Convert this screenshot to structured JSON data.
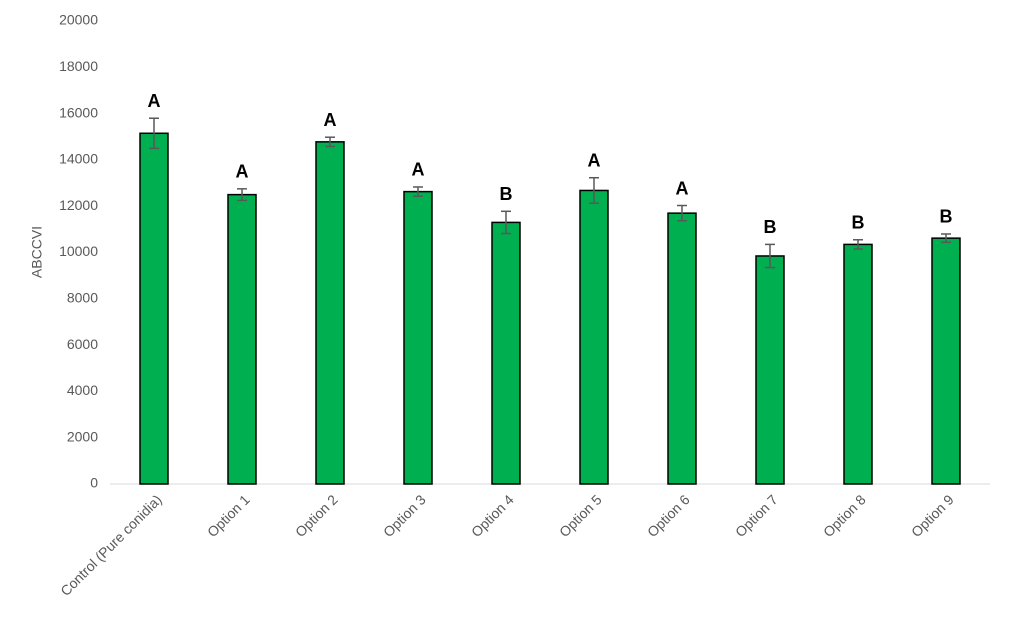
{
  "chart_data": {
    "type": "bar",
    "y_label": "ABCCVI",
    "categories": [
      "Control (Pure conidia)",
      "Option 1",
      "Option 2",
      "Option 3",
      "Option 4",
      "Option 5",
      "Option 6",
      "Option 7",
      "Option 8",
      "Option 9"
    ],
    "values": [
      15150,
      12500,
      14780,
      12630,
      11300,
      12680,
      11700,
      9850,
      10350,
      10620
    ],
    "errors": [
      650,
      250,
      200,
      200,
      480,
      550,
      330,
      500,
      200,
      180
    ],
    "annotations": [
      "A",
      "A",
      "A",
      "A",
      "B",
      "A",
      "A",
      "B",
      "B",
      "B"
    ],
    "color": "#00b050",
    "error_color": "#595959",
    "ylim": [
      0,
      20000
    ],
    "yticks": [
      0,
      2000,
      4000,
      6000,
      8000,
      10000,
      12000,
      14000,
      16000,
      18000,
      20000
    ],
    "grid": false
  }
}
